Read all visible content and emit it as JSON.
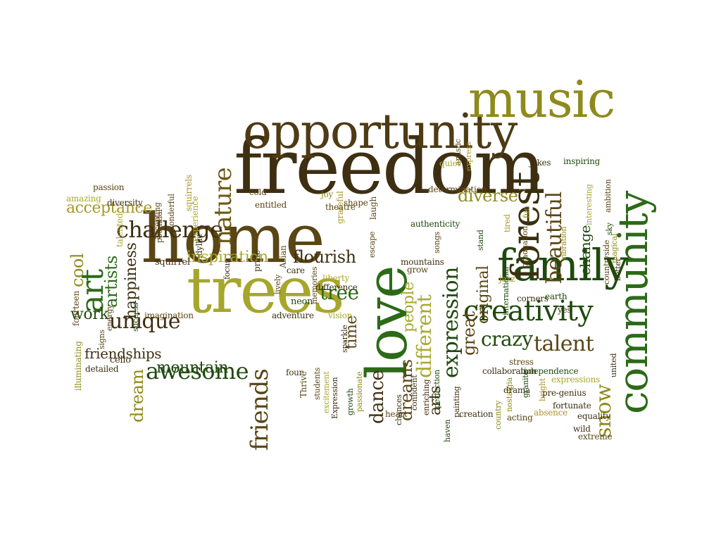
{
  "palette": {
    "dark_brown": "#3f2f12",
    "brown": "#5a4515",
    "olive": "#8a8418",
    "yellow_olive": "#b4b42a",
    "dark_green": "#1f4a0e",
    "green": "#2c6a18",
    "light_olive": "#a8a830"
  },
  "words": [
    {
      "text": "freedom",
      "color": "#3f2f12",
      "size": 108,
      "weight": 400,
      "rot": 0
    },
    {
      "text": "home",
      "color": "#5a4515",
      "size": 96,
      "weight": 400,
      "rot": 0
    },
    {
      "text": "trees",
      "color": "#a7a62c",
      "size": 90,
      "weight": 400,
      "rot": 0
    },
    {
      "text": "opportunity",
      "color": "#4e3a14",
      "size": 68,
      "weight": 400,
      "rot": 0
    },
    {
      "text": "music",
      "color": "#8f8a1c",
      "size": 72,
      "weight": 400,
      "rot": 0
    },
    {
      "text": "community",
      "color": "#2c6a18",
      "size": 58,
      "weight": 400,
      "rot": -90
    },
    {
      "text": "love",
      "color": "#2c6a18",
      "size": 80,
      "weight": 400,
      "rot": -90
    },
    {
      "text": "family",
      "color": "#1f4a0e",
      "size": 62,
      "weight": 400,
      "rot": 0
    },
    {
      "text": "forest",
      "color": "#3a3010",
      "size": 54,
      "weight": 400,
      "rot": -90
    },
    {
      "text": "creativity",
      "color": "#1f4a0e",
      "size": 40,
      "weight": 400,
      "rot": 0
    },
    {
      "text": "art",
      "color": "#2c6a18",
      "size": 44,
      "weight": 400,
      "rot": -90
    },
    {
      "text": "challenge",
      "color": "#3f2f12",
      "size": 32,
      "weight": 400,
      "rot": 0
    },
    {
      "text": "nature",
      "color": "#6a5a14",
      "size": 34,
      "weight": 400,
      "rot": -90
    },
    {
      "text": "beautiful",
      "color": "#5a4515",
      "size": 30,
      "weight": 400,
      "rot": -90
    },
    {
      "text": "expression",
      "color": "#1f4a0e",
      "size": 30,
      "weight": 400,
      "rot": -90
    },
    {
      "text": "awesome",
      "color": "#1f4a0e",
      "size": 32,
      "weight": 400,
      "rot": 0
    },
    {
      "text": "unique",
      "color": "#3f2f12",
      "size": 30,
      "weight": 400,
      "rot": 0
    },
    {
      "text": "talent",
      "color": "#5a4515",
      "size": 30,
      "weight": 400,
      "rot": 0
    },
    {
      "text": "crazy",
      "color": "#1f4a0e",
      "size": 28,
      "weight": 400,
      "rot": 0
    },
    {
      "text": "friends",
      "color": "#5a4515",
      "size": 34,
      "weight": 400,
      "rot": -90
    },
    {
      "text": "snow",
      "color": "#8f8a1c",
      "size": 30,
      "weight": 400,
      "rot": -90
    },
    {
      "text": "different",
      "color": "#a8a830",
      "size": 28,
      "weight": 400,
      "rot": -90
    },
    {
      "text": "dance",
      "color": "#3f2f12",
      "size": 26,
      "weight": 400,
      "rot": -90
    },
    {
      "text": "dreams",
      "color": "#5a4515",
      "size": 24,
      "weight": 400,
      "rot": -90
    },
    {
      "text": "diverse",
      "color": "#8f8a1c",
      "size": 24,
      "weight": 400,
      "rot": 0
    },
    {
      "text": "acceptance",
      "color": "#a8962c",
      "size": 22,
      "weight": 400,
      "rot": 0
    },
    {
      "text": "inspiration",
      "color": "#a8a830",
      "size": 22,
      "weight": 400,
      "rot": 0
    },
    {
      "text": "flourish",
      "color": "#3f2f12",
      "size": 24,
      "weight": 400,
      "rot": 0
    },
    {
      "text": "tree",
      "color": "#2c6a18",
      "size": 28,
      "weight": 400,
      "rot": 0
    },
    {
      "text": "artists",
      "color": "#2c6a18",
      "size": 24,
      "weight": 400,
      "rot": -90
    },
    {
      "text": "happiness",
      "color": "#3f2f12",
      "size": 22,
      "weight": 400,
      "rot": -90
    },
    {
      "text": "cool",
      "color": "#8f8a1c",
      "size": 24,
      "weight": 400,
      "rot": -90
    },
    {
      "text": "work",
      "color": "#1f4a0e",
      "size": 22,
      "weight": 400,
      "rot": 0
    },
    {
      "text": "friendships",
      "color": "#3f2f12",
      "size": 20,
      "weight": 400,
      "rot": 0
    },
    {
      "text": "mountain",
      "color": "#1f4a0e",
      "size": 22,
      "weight": 400,
      "rot": 0
    },
    {
      "text": "dream",
      "color": "#8f8a1c",
      "size": 24,
      "weight": 400,
      "rot": -90
    },
    {
      "text": "people",
      "color": "#a8a830",
      "size": 22,
      "weight": 400,
      "rot": -90
    },
    {
      "text": "time",
      "color": "#5a4515",
      "size": 22,
      "weight": 400,
      "rot": -90
    },
    {
      "text": "great",
      "color": "#5a4515",
      "size": 24,
      "weight": 400,
      "rot": -90
    },
    {
      "text": "arts",
      "color": "#3f2f12",
      "size": 22,
      "weight": 400,
      "rot": -90
    },
    {
      "text": "original",
      "color": "#5a4515",
      "size": 22,
      "weight": 400,
      "rot": -90
    },
    {
      "text": "change",
      "color": "#1f4a0e",
      "size": 20,
      "weight": 400,
      "rot": -90
    },
    {
      "text": "cello",
      "color": "#3f2f12",
      "size": 13,
      "weight": 400,
      "rot": 0
    },
    {
      "text": "detailed",
      "color": "#3f2f12",
      "size": 12,
      "weight": 400,
      "rot": 0
    },
    {
      "text": "illuminating",
      "color": "#8f8a1c",
      "size": 12,
      "weight": 400,
      "rot": -90
    },
    {
      "text": "signs",
      "color": "#5a4515",
      "size": 11,
      "weight": 400,
      "rot": -90
    },
    {
      "text": "energy",
      "color": "#5a4515",
      "size": 11,
      "weight": 400,
      "rot": -90
    },
    {
      "text": "fourteen",
      "color": "#5a4515",
      "size": 12,
      "weight": 400,
      "rot": -90
    },
    {
      "text": "success",
      "color": "#1f4a0e",
      "size": 11,
      "weight": 400,
      "rot": -90
    },
    {
      "text": "imagination",
      "color": "#5a4515",
      "size": 12,
      "weight": 400,
      "rot": 0
    },
    {
      "text": "squirrel",
      "color": "#3f2f12",
      "size": 13,
      "weight": 400,
      "rot": 0
    },
    {
      "text": "talented",
      "color": "#a8a830",
      "size": 12,
      "weight": 400,
      "rot": -90
    },
    {
      "text": "experience",
      "color": "#a8a830",
      "size": 12,
      "weight": 400,
      "rot": -90
    },
    {
      "text": "accepting",
      "color": "#5a4515",
      "size": 11,
      "weight": 400,
      "rot": -90
    },
    {
      "text": "potential",
      "color": "#5a4515",
      "size": 11,
      "weight": 400,
      "rot": -90
    },
    {
      "text": "wonderful",
      "color": "#5a4515",
      "size": 11,
      "weight": 400,
      "rot": -90
    },
    {
      "text": "squirrels",
      "color": "#a8962c",
      "size": 12,
      "weight": 400,
      "rot": -90
    },
    {
      "text": "idyllic",
      "color": "#3f2f12",
      "size": 12,
      "weight": 400,
      "rot": -90
    },
    {
      "text": "diversity",
      "color": "#3f2f12",
      "size": 12,
      "weight": 400,
      "rot": 0
    },
    {
      "text": "amazing",
      "color": "#a8a830",
      "size": 12,
      "weight": 400,
      "rot": 0
    },
    {
      "text": "passion",
      "color": "#5a4515",
      "size": 12,
      "weight": 400,
      "rot": 0
    },
    {
      "text": "cold",
      "color": "#5a4515",
      "size": 12,
      "weight": 400,
      "rot": 0
    },
    {
      "text": "focus",
      "color": "#3f2f12",
      "size": 11,
      "weight": 400,
      "rot": -90
    },
    {
      "text": "entitled",
      "color": "#5a4515",
      "size": 12,
      "weight": 400,
      "rot": 0
    },
    {
      "text": "pride",
      "color": "#3f2f12",
      "size": 12,
      "weight": 400,
      "rot": -90
    },
    {
      "text": "Asian",
      "color": "#5a4515",
      "size": 12,
      "weight": 400,
      "rot": -90
    },
    {
      "text": "care",
      "color": "#3f2f12",
      "size": 12,
      "weight": 400,
      "rot": 0
    },
    {
      "text": "lively",
      "color": "#5a4515",
      "size": 11,
      "weight": 400,
      "rot": -90
    },
    {
      "text": "memories",
      "color": "#5a4515",
      "size": 11,
      "weight": 400,
      "rot": -90
    },
    {
      "text": "neon",
      "color": "#1f4a0e",
      "size": 13,
      "weight": 400,
      "rot": 0
    },
    {
      "text": "adventure",
      "color": "#3f2f12",
      "size": 12,
      "weight": 400,
      "rot": 0
    },
    {
      "text": "joy",
      "color": "#8f8a1c",
      "size": 12,
      "weight": 400,
      "rot": 0
    },
    {
      "text": "grateful",
      "color": "#a8962c",
      "size": 12,
      "weight": 400,
      "rot": -90
    },
    {
      "text": "shape",
      "color": "#5a4515",
      "size": 12,
      "weight": 400,
      "rot": 0
    },
    {
      "text": "theatre",
      "color": "#5a4515",
      "size": 12,
      "weight": 400,
      "rot": 0
    },
    {
      "text": "laugh",
      "color": "#5a4515",
      "size": 12,
      "weight": 400,
      "rot": -90
    },
    {
      "text": "escape",
      "color": "#5a4515",
      "size": 11,
      "weight": 400,
      "rot": -90
    },
    {
      "text": "liberty",
      "color": "#a8a830",
      "size": 12,
      "weight": 400,
      "rot": 0
    },
    {
      "text": "difference",
      "color": "#3f2f12",
      "size": 12,
      "weight": 400,
      "rot": 0
    },
    {
      "text": "vision",
      "color": "#a8a830",
      "size": 12,
      "weight": 400,
      "rot": 0
    },
    {
      "text": "sparkle",
      "color": "#3f2f12",
      "size": 11,
      "weight": 400,
      "rot": -90
    },
    {
      "text": "Thrive",
      "color": "#5a4515",
      "size": 12,
      "weight": 400,
      "rot": -90
    },
    {
      "text": "four",
      "color": "#3f2f12",
      "size": 12,
      "weight": 400,
      "rot": 0
    },
    {
      "text": "students",
      "color": "#5a4515",
      "size": 11,
      "weight": 400,
      "rot": -90
    },
    {
      "text": "excitement",
      "color": "#a8a830",
      "size": 11,
      "weight": 400,
      "rot": -90
    },
    {
      "text": "Expression",
      "color": "#3f2f12",
      "size": 11,
      "weight": 400,
      "rot": -90
    },
    {
      "text": "growth",
      "color": "#1f4a0e",
      "size": 11,
      "weight": 400,
      "rot": -90
    },
    {
      "text": "passionate",
      "color": "#8f8a1c",
      "size": 11,
      "weight": 400,
      "rot": -90
    },
    {
      "text": "chances",
      "color": "#3f2f12",
      "size": 11,
      "weight": 400,
      "rot": -90
    },
    {
      "text": "heart",
      "color": "#5a4515",
      "size": 12,
      "weight": 400,
      "rot": 0
    },
    {
      "text": "confident",
      "color": "#3f2f12",
      "size": 11,
      "weight": 400,
      "rot": -90
    },
    {
      "text": "enriching",
      "color": "#3f2f12",
      "size": 11,
      "weight": 400,
      "rot": -90
    },
    {
      "text": "perfection",
      "color": "#1f4a0e",
      "size": 11,
      "weight": 400,
      "rot": -90
    },
    {
      "text": "haven",
      "color": "#1f4a0e",
      "size": 11,
      "weight": 400,
      "rot": -90
    },
    {
      "text": "painting",
      "color": "#3f2f12",
      "size": 11,
      "weight": 400,
      "rot": -90
    },
    {
      "text": "country",
      "color": "#8f8a1c",
      "size": 11,
      "weight": 400,
      "rot": -90
    },
    {
      "text": "nostalgia",
      "color": "#8f8a1c",
      "size": 11,
      "weight": 400,
      "rot": -90
    },
    {
      "text": "creation",
      "color": "#3f2f12",
      "size": 12,
      "weight": 400,
      "rot": 0
    },
    {
      "text": "collaboration",
      "color": "#3f2f12",
      "size": 12,
      "weight": 400,
      "rot": 0
    },
    {
      "text": "drama",
      "color": "#3f2f12",
      "size": 12,
      "weight": 400,
      "rot": 0
    },
    {
      "text": "acting",
      "color": "#5a4515",
      "size": 12,
      "weight": 400,
      "rot": 0
    },
    {
      "text": "granite",
      "color": "#1f4a0e",
      "size": 11,
      "weight": 400,
      "rot": -90
    },
    {
      "text": "bright",
      "color": "#a8962c",
      "size": 11,
      "weight": 400,
      "rot": -90
    },
    {
      "text": "stress",
      "color": "#5a4515",
      "size": 12,
      "weight": 400,
      "rot": 0
    },
    {
      "text": "independence",
      "color": "#1f4a0e",
      "size": 12,
      "weight": 400,
      "rot": 0
    },
    {
      "text": "expressions",
      "color": "#a8a830",
      "size": 12,
      "weight": 400,
      "rot": 0
    },
    {
      "text": "pre-genius",
      "color": "#3f2f12",
      "size": 12,
      "weight": 400,
      "rot": 0
    },
    {
      "text": "absence",
      "color": "#a8962c",
      "size": 12,
      "weight": 400,
      "rot": 0
    },
    {
      "text": "fortunate",
      "color": "#3f2f12",
      "size": 12,
      "weight": 400,
      "rot": 0
    },
    {
      "text": "equality",
      "color": "#3f2f12",
      "size": 12,
      "weight": 400,
      "rot": 0
    },
    {
      "text": "wild",
      "color": "#3f2f12",
      "size": 12,
      "weight": 400,
      "rot": 0
    },
    {
      "text": "extreme",
      "color": "#5a4515",
      "size": 12,
      "weight": 400,
      "rot": 0
    },
    {
      "text": "united",
      "color": "#3f2f12",
      "size": 11,
      "weight": 400,
      "rot": -90
    },
    {
      "text": "yes",
      "color": "#3f2f12",
      "size": 12,
      "weight": 400,
      "rot": 0
    },
    {
      "text": "earth",
      "color": "#1f4a0e",
      "size": 12,
      "weight": 400,
      "rot": 0
    },
    {
      "text": "corners",
      "color": "#3f2f12",
      "size": 12,
      "weight": 400,
      "rot": 0
    },
    {
      "text": "international",
      "color": "#1f4a0e",
      "size": 11,
      "weight": 400,
      "rot": -90
    },
    {
      "text": "jazz",
      "color": "#a8962c",
      "size": 12,
      "weight": 400,
      "rot": 0
    },
    {
      "text": "better",
      "color": "#3f2f12",
      "size": 11,
      "weight": 400,
      "rot": -90
    },
    {
      "text": "countryside",
      "color": "#5a4515",
      "size": 11,
      "weight": 400,
      "rot": -90
    },
    {
      "text": "magical",
      "color": "#8f8a1c",
      "size": 11,
      "weight": 400,
      "rot": -90
    },
    {
      "text": "sky",
      "color": "#1f4a0e",
      "size": 11,
      "weight": 400,
      "rot": -90
    },
    {
      "text": "vibration",
      "color": "#8f8a1c",
      "size": 11,
      "weight": 400,
      "rot": -90
    },
    {
      "text": "graduation",
      "color": "#5a4515",
      "size": 11,
      "weight": 400,
      "rot": -90
    },
    {
      "text": "tired",
      "color": "#a8962c",
      "size": 11,
      "weight": 400,
      "rot": -90
    },
    {
      "text": "stand",
      "color": "#1f4a0e",
      "size": 11,
      "weight": 400,
      "rot": -90
    },
    {
      "text": "songs",
      "color": "#5a4515",
      "size": 11,
      "weight": 400,
      "rot": -90
    },
    {
      "text": "mountains",
      "color": "#3f2f12",
      "size": 12,
      "weight": 400,
      "rot": 0
    },
    {
      "text": "grow",
      "color": "#5a4515",
      "size": 12,
      "weight": 400,
      "rot": 0
    },
    {
      "text": "authenticity",
      "color": "#1f4a0e",
      "size": 12,
      "weight": 400,
      "rot": 0
    },
    {
      "text": "determination",
      "color": "#5a4515",
      "size": 12,
      "weight": 400,
      "rot": 0
    },
    {
      "text": "fun",
      "color": "#8f8a1c",
      "size": 11,
      "weight": 400,
      "rot": -90
    },
    {
      "text": "interesting",
      "color": "#a8a830",
      "size": 11,
      "weight": 400,
      "rot": -90
    },
    {
      "text": "ambition",
      "color": "#5a4515",
      "size": 11,
      "weight": 400,
      "rot": -90
    },
    {
      "text": "inspiring",
      "color": "#1f4a0e",
      "size": 12,
      "weight": 400,
      "rot": 0
    },
    {
      "text": "jokes",
      "color": "#3f2f12",
      "size": 12,
      "weight": 400,
      "rot": 0
    },
    {
      "text": "express",
      "color": "#a8962c",
      "size": 11,
      "weight": 400,
      "rot": -90
    },
    {
      "text": "artistic",
      "color": "#5a4515",
      "size": 11,
      "weight": 400,
      "rot": -90
    },
    {
      "text": "quiet",
      "color": "#a8a830",
      "size": 12,
      "weight": 400,
      "rot": 0
    }
  ]
}
